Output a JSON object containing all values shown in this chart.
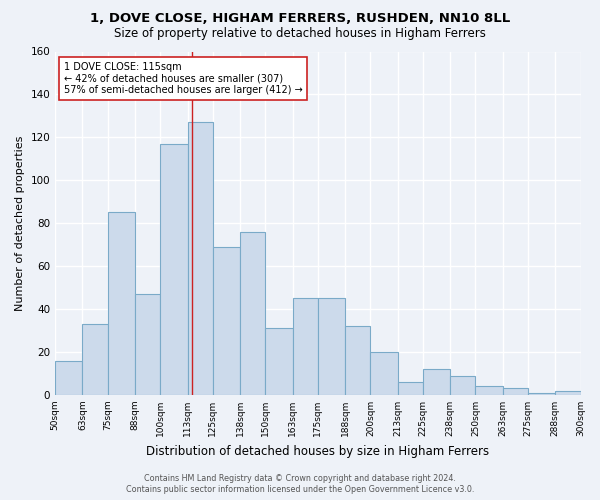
{
  "title1": "1, DOVE CLOSE, HIGHAM FERRERS, RUSHDEN, NN10 8LL",
  "title2": "Size of property relative to detached houses in Higham Ferrers",
  "xlabel": "Distribution of detached houses by size in Higham Ferrers",
  "ylabel": "Number of detached properties",
  "footer1": "Contains HM Land Registry data © Crown copyright and database right 2024.",
  "footer2": "Contains public sector information licensed under the Open Government Licence v3.0.",
  "annotation_line1": "1 DOVE CLOSE: 115sqm",
  "annotation_line2": "← 42% of detached houses are smaller (307)",
  "annotation_line3": "57% of semi-detached houses are larger (412) →",
  "bar_edges": [
    50,
    63,
    75,
    88,
    100,
    113,
    125,
    138,
    150,
    163,
    175,
    188,
    200,
    213,
    225,
    238,
    250,
    263,
    275,
    288,
    300
  ],
  "bar_heights": [
    16,
    33,
    85,
    47,
    117,
    127,
    69,
    76,
    31,
    45,
    45,
    32,
    20,
    6,
    12,
    9,
    4,
    3,
    1,
    2
  ],
  "bar_color": "#ccdaeb",
  "bar_edge_color": "#7aaac8",
  "vline_x": 115,
  "vline_color": "#cc2222",
  "bg_color": "#eef2f8",
  "grid_color": "#ffffff",
  "ylim": [
    0,
    160
  ],
  "yticks": [
    0,
    20,
    40,
    60,
    80,
    100,
    120,
    140,
    160
  ]
}
